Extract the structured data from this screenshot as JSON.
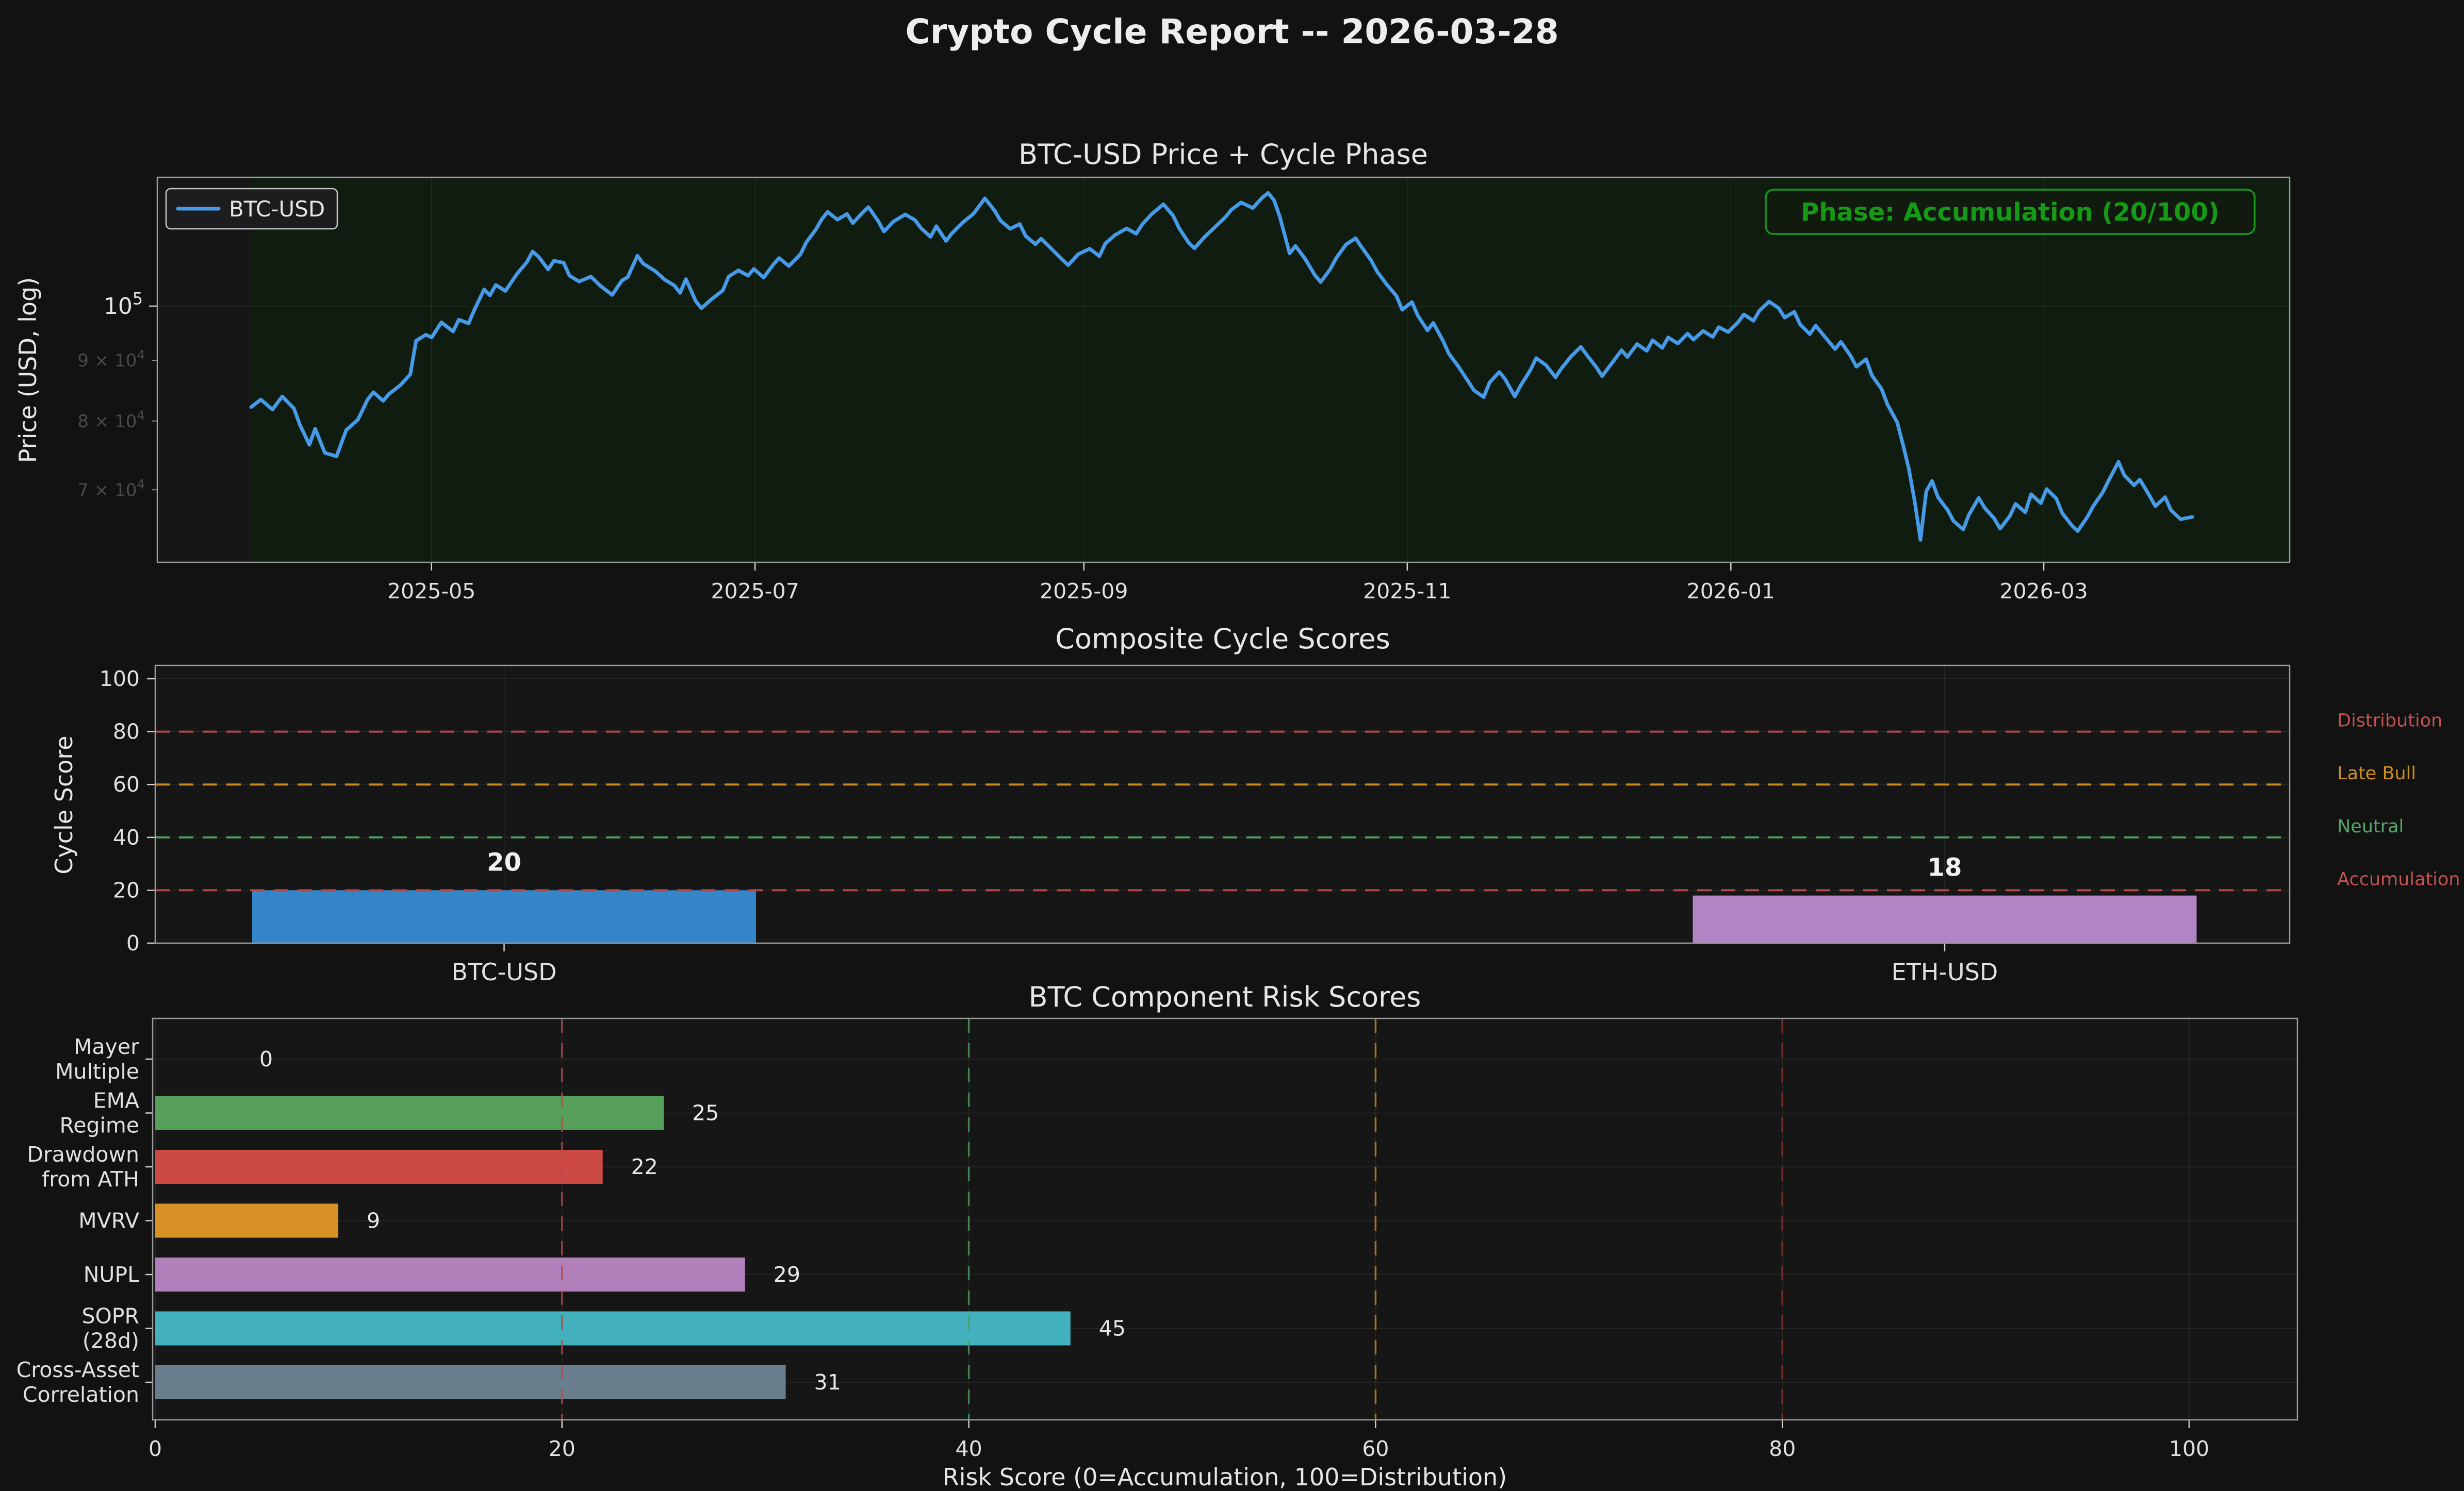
{
  "report_title": "Crypto Cycle Report -- 2026-03-28",
  "figure": {
    "background": "#121212",
    "axes_background": "#161616",
    "spine_color": "#9c9c9c",
    "grid_color": "rgba(255,255,255,0.08)",
    "text_color": "#e6e6e6",
    "minor_tick_color": "#4a4a4a"
  },
  "chart_data": [
    {
      "type": "line",
      "title": "BTC-USD Price + Cycle Phase",
      "ylabel": "Price (USD, log)",
      "yscale": "log",
      "ylim": [
        60800,
        128400
      ],
      "x_range": [
        "2025-03-28",
        "2026-03-28"
      ],
      "phase_span_color": "#0f1c0f",
      "annotation": {
        "text": "Phase: Accumulation (20/100)",
        "color": "#169a16",
        "box_bg": "#101a0e"
      },
      "legend_position": "upper left",
      "x_ticks": [
        {
          "label": "2025-05",
          "t": 0.0929
        },
        {
          "label": "2025-07",
          "t": 0.2596
        },
        {
          "label": "2025-09",
          "t": 0.429
        },
        {
          "label": "2025-11",
          "t": 0.5956
        },
        {
          "label": "2026-01",
          "t": 0.7623
        },
        {
          "label": "2026-03",
          "t": 0.9235
        }
      ],
      "y_ticks_major": [
        {
          "value": 100000,
          "base": "10",
          "exp": "5"
        }
      ],
      "y_ticks_minor": [
        {
          "value": 90000,
          "base": "9 × 10",
          "exp": "4"
        },
        {
          "value": 80000,
          "base": "8 × 10",
          "exp": "4"
        },
        {
          "value": 70000,
          "base": "7 × 10",
          "exp": "4"
        }
      ],
      "series": {
        "name": "BTC-USD",
        "color": "#469ae8",
        "points": [
          [
            0.0,
            82200
          ],
          [
            0.005,
            83400
          ],
          [
            0.011,
            81800
          ],
          [
            0.016,
            83900
          ],
          [
            0.022,
            82000
          ],
          [
            0.025,
            79500
          ],
          [
            0.03,
            76400
          ],
          [
            0.033,
            78800
          ],
          [
            0.038,
            75200
          ],
          [
            0.044,
            74700
          ],
          [
            0.049,
            78600
          ],
          [
            0.055,
            80200
          ],
          [
            0.06,
            83400
          ],
          [
            0.063,
            84600
          ],
          [
            0.068,
            83200
          ],
          [
            0.071,
            84300
          ],
          [
            0.077,
            85800
          ],
          [
            0.082,
            87600
          ],
          [
            0.085,
            93500
          ],
          [
            0.09,
            94600
          ],
          [
            0.093,
            94100
          ],
          [
            0.098,
            96900
          ],
          [
            0.104,
            95200
          ],
          [
            0.107,
            97400
          ],
          [
            0.112,
            96700
          ],
          [
            0.115,
            99300
          ],
          [
            0.12,
            103300
          ],
          [
            0.123,
            102100
          ],
          [
            0.126,
            104200
          ],
          [
            0.131,
            103000
          ],
          [
            0.137,
            106500
          ],
          [
            0.142,
            108900
          ],
          [
            0.145,
            111200
          ],
          [
            0.148,
            110100
          ],
          [
            0.153,
            107400
          ],
          [
            0.156,
            109200
          ],
          [
            0.161,
            108800
          ],
          [
            0.164,
            106100
          ],
          [
            0.169,
            104900
          ],
          [
            0.175,
            105900
          ],
          [
            0.18,
            104000
          ],
          [
            0.186,
            102200
          ],
          [
            0.191,
            105100
          ],
          [
            0.194,
            105800
          ],
          [
            0.199,
            110300
          ],
          [
            0.202,
            108600
          ],
          [
            0.208,
            107100
          ],
          [
            0.213,
            105300
          ],
          [
            0.218,
            104100
          ],
          [
            0.221,
            102600
          ],
          [
            0.224,
            105400
          ],
          [
            0.229,
            101000
          ],
          [
            0.232,
            99600
          ],
          [
            0.237,
            101300
          ],
          [
            0.243,
            103100
          ],
          [
            0.246,
            105900
          ],
          [
            0.251,
            107200
          ],
          [
            0.256,
            106100
          ],
          [
            0.259,
            107500
          ],
          [
            0.264,
            105700
          ],
          [
            0.269,
            108400
          ],
          [
            0.272,
            109800
          ],
          [
            0.277,
            108100
          ],
          [
            0.283,
            110600
          ],
          [
            0.286,
            113200
          ],
          [
            0.291,
            116100
          ],
          [
            0.294,
            118400
          ],
          [
            0.297,
            120100
          ],
          [
            0.302,
            118300
          ],
          [
            0.307,
            119600
          ],
          [
            0.31,
            117500
          ],
          [
            0.315,
            119900
          ],
          [
            0.318,
            121200
          ],
          [
            0.323,
            118000
          ],
          [
            0.326,
            115600
          ],
          [
            0.331,
            117900
          ],
          [
            0.337,
            119500
          ],
          [
            0.342,
            118200
          ],
          [
            0.345,
            116400
          ],
          [
            0.35,
            114400
          ],
          [
            0.353,
            116800
          ],
          [
            0.358,
            113500
          ],
          [
            0.361,
            115200
          ],
          [
            0.367,
            117800
          ],
          [
            0.372,
            119600
          ],
          [
            0.375,
            121400
          ],
          [
            0.378,
            123300
          ],
          [
            0.383,
            120400
          ],
          [
            0.386,
            118100
          ],
          [
            0.391,
            116200
          ],
          [
            0.396,
            117300
          ],
          [
            0.399,
            114600
          ],
          [
            0.404,
            112800
          ],
          [
            0.407,
            114000
          ],
          [
            0.412,
            111900
          ],
          [
            0.418,
            109400
          ],
          [
            0.421,
            108300
          ],
          [
            0.426,
            110600
          ],
          [
            0.432,
            111800
          ],
          [
            0.437,
            110200
          ],
          [
            0.44,
            112900
          ],
          [
            0.445,
            114800
          ],
          [
            0.451,
            116300
          ],
          [
            0.456,
            115100
          ],
          [
            0.459,
            117200
          ],
          [
            0.464,
            119600
          ],
          [
            0.47,
            121900
          ],
          [
            0.475,
            119200
          ],
          [
            0.478,
            116400
          ],
          [
            0.483,
            113100
          ],
          [
            0.486,
            111900
          ],
          [
            0.491,
            114300
          ],
          [
            0.497,
            116800
          ],
          [
            0.502,
            118900
          ],
          [
            0.505,
            120600
          ],
          [
            0.51,
            122300
          ],
          [
            0.516,
            121000
          ],
          [
            0.521,
            123500
          ],
          [
            0.524,
            124600
          ],
          [
            0.527,
            122800
          ],
          [
            0.53,
            118900
          ],
          [
            0.535,
            110800
          ],
          [
            0.538,
            112400
          ],
          [
            0.543,
            109600
          ],
          [
            0.548,
            106200
          ],
          [
            0.551,
            104800
          ],
          [
            0.556,
            107500
          ],
          [
            0.559,
            109800
          ],
          [
            0.564,
            112700
          ],
          [
            0.569,
            114100
          ],
          [
            0.572,
            112200
          ],
          [
            0.577,
            109300
          ],
          [
            0.58,
            107000
          ],
          [
            0.585,
            104300
          ],
          [
            0.59,
            102000
          ],
          [
            0.593,
            99300
          ],
          [
            0.598,
            100800
          ],
          [
            0.601,
            98200
          ],
          [
            0.606,
            95400
          ],
          [
            0.609,
            96800
          ],
          [
            0.614,
            93500
          ],
          [
            0.617,
            91200
          ],
          [
            0.622,
            88900
          ],
          [
            0.627,
            86400
          ],
          [
            0.63,
            84900
          ],
          [
            0.635,
            83800
          ],
          [
            0.638,
            86200
          ],
          [
            0.643,
            88000
          ],
          [
            0.646,
            86800
          ],
          [
            0.651,
            83900
          ],
          [
            0.654,
            85700
          ],
          [
            0.659,
            88300
          ],
          [
            0.662,
            90400
          ],
          [
            0.667,
            89200
          ],
          [
            0.672,
            87100
          ],
          [
            0.675,
            88600
          ],
          [
            0.68,
            90700
          ],
          [
            0.685,
            92400
          ],
          [
            0.688,
            91000
          ],
          [
            0.693,
            88800
          ],
          [
            0.696,
            87300
          ],
          [
            0.701,
            89500
          ],
          [
            0.706,
            91800
          ],
          [
            0.709,
            90600
          ],
          [
            0.714,
            92900
          ],
          [
            0.719,
            91700
          ],
          [
            0.722,
            93600
          ],
          [
            0.727,
            92200
          ],
          [
            0.73,
            94100
          ],
          [
            0.735,
            93000
          ],
          [
            0.74,
            94800
          ],
          [
            0.743,
            93700
          ],
          [
            0.748,
            95300
          ],
          [
            0.753,
            94200
          ],
          [
            0.756,
            96000
          ],
          [
            0.761,
            95100
          ],
          [
            0.766,
            96900
          ],
          [
            0.769,
            98400
          ],
          [
            0.774,
            97200
          ],
          [
            0.777,
            99100
          ],
          [
            0.782,
            100900
          ],
          [
            0.787,
            99600
          ],
          [
            0.79,
            97800
          ],
          [
            0.795,
            98900
          ],
          [
            0.798,
            96500
          ],
          [
            0.803,
            94700
          ],
          [
            0.806,
            96300
          ],
          [
            0.811,
            94100
          ],
          [
            0.816,
            92000
          ],
          [
            0.819,
            93300
          ],
          [
            0.824,
            90800
          ],
          [
            0.827,
            88900
          ],
          [
            0.832,
            90200
          ],
          [
            0.835,
            87400
          ],
          [
            0.84,
            85100
          ],
          [
            0.843,
            82600
          ],
          [
            0.848,
            79800
          ],
          [
            0.851,
            76400
          ],
          [
            0.854,
            72900
          ],
          [
            0.857,
            68500
          ],
          [
            0.86,
            63500
          ],
          [
            0.863,
            69800
          ],
          [
            0.866,
            71200
          ],
          [
            0.869,
            69000
          ],
          [
            0.874,
            67300
          ],
          [
            0.877,
            65900
          ],
          [
            0.882,
            64800
          ],
          [
            0.885,
            66700
          ],
          [
            0.89,
            68900
          ],
          [
            0.893,
            67600
          ],
          [
            0.898,
            66200
          ],
          [
            0.901,
            64900
          ],
          [
            0.906,
            66500
          ],
          [
            0.909,
            68100
          ],
          [
            0.914,
            67000
          ],
          [
            0.917,
            69400
          ],
          [
            0.922,
            68200
          ],
          [
            0.925,
            70100
          ],
          [
            0.93,
            68800
          ],
          [
            0.933,
            66900
          ],
          [
            0.938,
            65300
          ],
          [
            0.941,
            64600
          ],
          [
            0.946,
            66400
          ],
          [
            0.949,
            67800
          ],
          [
            0.954,
            69700
          ],
          [
            0.957,
            71300
          ],
          [
            0.962,
            73900
          ],
          [
            0.965,
            72000
          ],
          [
            0.97,
            70600
          ],
          [
            0.973,
            71400
          ],
          [
            0.978,
            69200
          ],
          [
            0.981,
            67800
          ],
          [
            0.986,
            69000
          ],
          [
            0.989,
            67300
          ],
          [
            0.994,
            66100
          ],
          [
            1.0,
            66400
          ]
        ]
      }
    },
    {
      "type": "bar",
      "title": "Composite Cycle Scores",
      "ylabel": "Cycle Score",
      "categories": [
        "BTC-USD",
        "ETH-USD"
      ],
      "values": [
        20,
        18
      ],
      "bar_colors": [
        "#3585c9",
        "#b284c4"
      ],
      "ylim": [
        0,
        105
      ],
      "y_ticks": [
        0,
        20,
        40,
        60,
        80,
        100
      ],
      "thresholds": [
        {
          "label": "Distribution",
          "value": 80,
          "color": "#b04a4a",
          "label_color": "#c25150"
        },
        {
          "label": "Late Bull",
          "value": 60,
          "color": "#c8891d",
          "label_color": "#cf9020"
        },
        {
          "label": "Neutral",
          "value": 40,
          "color": "#4d9e5e",
          "label_color": "#55a868"
        },
        {
          "label": "Accumulation",
          "value": 20,
          "color": "#b04a4a",
          "label_color": "#c25150"
        }
      ]
    },
    {
      "type": "bar-horizontal",
      "title": "BTC Component Risk Scores",
      "xlabel": "Risk Score (0=Accumulation, 100=Distribution)",
      "categories": [
        "Mayer\nMultiple",
        "EMA\nRegime",
        "Drawdown\nfrom ATH",
        "MVRV",
        "NUPL",
        "SOPR\n(28d)",
        "Cross-Asset\nCorrelation"
      ],
      "values": [
        0,
        25,
        22,
        9,
        29,
        45,
        31
      ],
      "bar_colors": [
        "#57a05c",
        "#57a05c",
        "#cd4a44",
        "#d89125",
        "#b17fba",
        "#42b0bd",
        "#697e8c"
      ],
      "xlim": [
        0,
        105
      ],
      "x_ticks": [
        0,
        20,
        40,
        60,
        80,
        100
      ],
      "thresholds": [
        {
          "value": 20,
          "color": "#b04a4a"
        },
        {
          "value": 40,
          "color": "#4d9e5e"
        },
        {
          "value": 60,
          "color": "#c8891d"
        },
        {
          "value": 80,
          "color": "#8a3434"
        }
      ]
    }
  ]
}
